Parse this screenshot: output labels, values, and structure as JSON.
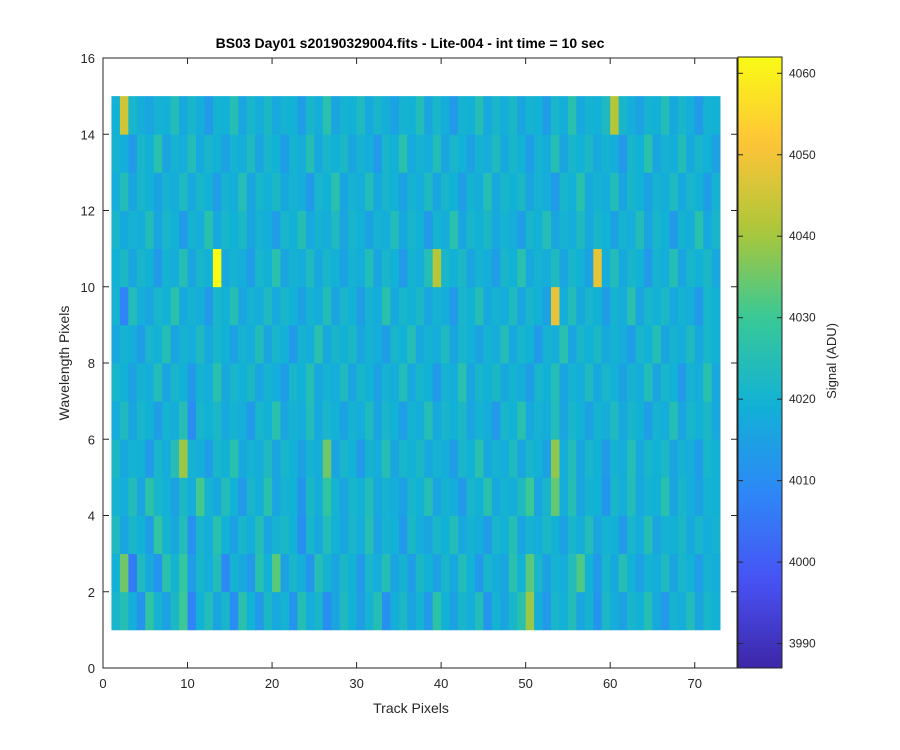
{
  "chart_data": {
    "type": "heatmap",
    "title": "BS03 Day01  s20190329004.fits - Lite-004 - int time = 10 sec",
    "xlabel": "Track Pixels",
    "ylabel": "Wavelength Pixels",
    "colorbar_label": "Signal (ADU)",
    "xlim": [
      0,
      75
    ],
    "ylim": [
      0,
      16
    ],
    "x_ticks": [
      0,
      10,
      20,
      30,
      40,
      50,
      60,
      70
    ],
    "y_ticks": [
      0,
      2,
      4,
      6,
      8,
      10,
      12,
      14,
      16
    ],
    "clim": [
      3987,
      4062
    ],
    "colorbar_ticks": [
      3990,
      4000,
      4010,
      4020,
      4030,
      4040,
      4050,
      4060
    ],
    "colormap": "parula",
    "grid": false,
    "x_extent": [
      1,
      73
    ],
    "y_extent": [
      1,
      15
    ],
    "n_cols": 72,
    "n_rows": 14,
    "rows": [
      [
        4021,
        4025,
        4018,
        4012,
        4028,
        4020,
        4015,
        4022,
        4030,
        4008,
        4019,
        4024,
        4016,
        4021,
        4010,
        4026,
        4019,
        4013,
        4022,
        4017,
        4020,
        4012,
        4025,
        4018,
        4021,
        4010,
        4016,
        4023,
        4019,
        4014,
        4020,
        4025,
        4011,
        4018,
        4022,
        4016,
        4020,
        4013,
        4027,
        4019,
        4015,
        4021,
        4018,
        4024,
        4012,
        4020,
        4016,
        4021,
        4026,
        4039,
        4018,
        4013,
        4021,
        4019,
        4024,
        4016,
        4020,
        4012,
        4022,
        4018,
        4015,
        4021,
        4019,
        4025,
        4017,
        4013,
        4020,
        4018,
        4024,
        4016,
        4021,
        4019
      ],
      [
        4019,
        4035,
        4006,
        4023,
        4017,
        4012,
        4026,
        4020,
        4029,
        4014,
        4021,
        4018,
        4024,
        4009,
        4020,
        4017,
        4013,
        4026,
        4019,
        4033,
        4015,
        4021,
        4018,
        4012,
        4025,
        4020,
        4016,
        4022,
        4019,
        4013,
        4021,
        4018,
        4025,
        4016,
        4020,
        4014,
        4022,
        4019,
        4015,
        4021,
        4017,
        4024,
        4019,
        4013,
        4021,
        4018,
        4016,
        4026,
        4019,
        4033,
        4021,
        4015,
        4020,
        4018,
        4024,
        4032,
        4019,
        4013,
        4021,
        4017,
        4025,
        4019,
        4015,
        4020,
        4018,
        4023,
        4016,
        4021,
        4019,
        4014,
        4020,
        4018
      ],
      [
        4023,
        4016,
        4021,
        4019,
        4014,
        4028,
        4020,
        4017,
        4024,
        4011,
        4021,
        4018,
        4026,
        4019,
        4015,
        4021,
        4018,
        4025,
        4016,
        4020,
        4022,
        4019,
        4010,
        4021,
        4017,
        4024,
        4019,
        4016,
        4021,
        4018,
        4025,
        4016,
        4020,
        4019,
        4013,
        4022,
        4018,
        4016,
        4021,
        4019,
        4024,
        4017,
        4020,
        4018,
        4014,
        4021,
        4019,
        4025,
        4016,
        4020,
        4018,
        4022,
        4019,
        4015,
        4021,
        4018,
        4024,
        4016,
        4020,
        4019,
        4013,
        4021,
        4018,
        4025,
        4016,
        4020,
        4019,
        4022,
        4017,
        4021,
        4018,
        4020
      ],
      [
        4020,
        4018,
        4024,
        4016,
        4027,
        4021,
        4019,
        4015,
        4022,
        4018,
        4031,
        4020,
        4017,
        4024,
        4019,
        4013,
        4021,
        4018,
        4026,
        4016,
        4020,
        4019,
        4012,
        4022,
        4018,
        4028,
        4020,
        4016,
        4021,
        4019,
        4024,
        4017,
        4020,
        4018,
        4015,
        4021,
        4019,
        4025,
        4016,
        4020,
        4018,
        4013,
        4021,
        4019,
        4026,
        4017,
        4020,
        4018,
        4023,
        4030,
        4016,
        4021,
        4034,
        4018,
        4025,
        4016,
        4020,
        4019,
        4012,
        4021,
        4018,
        4024,
        4017,
        4020,
        4019,
        4026,
        4016,
        4021,
        4018,
        4015,
        4020,
        4019
      ],
      [
        4022,
        4017,
        4020,
        4019,
        4013,
        4021,
        4018,
        4025,
        4039,
        4020,
        4018,
        4014,
        4021,
        4019,
        4026,
        4017,
        4020,
        4018,
        4023,
        4016,
        4021,
        4019,
        4015,
        4020,
        4018,
        4035,
        4016,
        4021,
        4019,
        4013,
        4020,
        4018,
        4025,
        4016,
        4021,
        4019,
        4022,
        4017,
        4020,
        4018,
        4014,
        4021,
        4019,
        4026,
        4017,
        4020,
        4018,
        4023,
        4016,
        4021,
        4019,
        4015,
        4038,
        4018,
        4024,
        4016,
        4021,
        4019,
        4013,
        4020,
        4018,
        4025,
        4017,
        4021,
        4019,
        4022,
        4016,
        4020,
        4018,
        4014,
        4021,
        4019
      ],
      [
        4018,
        4023,
        4016,
        4021,
        4019,
        4014,
        4020,
        4018,
        4025,
        4010,
        4021,
        4019,
        4022,
        4017,
        4020,
        4018,
        4013,
        4021,
        4019,
        4026,
        4016,
        4020,
        4018,
        4024,
        4017,
        4021,
        4019,
        4015,
        4020,
        4018,
        4023,
        4016,
        4021,
        4019,
        4014,
        4020,
        4018,
        4025,
        4017,
        4021,
        4019,
        4022,
        4016,
        4020,
        4018,
        4013,
        4021,
        4019,
        4026,
        4017,
        4020,
        4018,
        4024,
        4016,
        4021,
        4019,
        4015,
        4020,
        4018,
        4023,
        4017,
        4021,
        4019,
        4014,
        4020,
        4018,
        4025,
        4016,
        4021,
        4019,
        4022,
        4017
      ],
      [
        4021,
        4019,
        4015,
        4020,
        4018,
        4024,
        4016,
        4021,
        4019,
        4013,
        4020,
        4018,
        4026,
        4017,
        4021,
        4019,
        4022,
        4016,
        4020,
        4018,
        4014,
        4021,
        4019,
        4025,
        4017,
        4020,
        4018,
        4023,
        4016,
        4021,
        4019,
        4015,
        4020,
        4018,
        4024,
        4017,
        4021,
        4019,
        4013,
        4020,
        4018,
        4026,
        4016,
        4021,
        4019,
        4022,
        4017,
        4020,
        4018,
        4014,
        4021,
        4019,
        4025,
        4016,
        4020,
        4018,
        4023,
        4017,
        4021,
        4019,
        4015,
        4020,
        4018,
        4024,
        4016,
        4021,
        4019,
        4013,
        4020,
        4018,
        4026,
        4017
      ],
      [
        4017,
        4020,
        4018,
        4014,
        4021,
        4019,
        4025,
        4016,
        4020,
        4018,
        4023,
        4017,
        4021,
        4019,
        4015,
        4020,
        4018,
        4024,
        4016,
        4021,
        4019,
        4013,
        4020,
        4018,
        4026,
        4017,
        4021,
        4019,
        4022,
        4016,
        4020,
        4018,
        4014,
        4021,
        4019,
        4025,
        4017,
        4020,
        4018,
        4023,
        4016,
        4021,
        4019,
        4015,
        4020,
        4018,
        4024,
        4017,
        4021,
        4019,
        4013,
        4020,
        4018,
        4026,
        4016,
        4021,
        4019,
        4022,
        4017,
        4020,
        4018,
        4014,
        4021,
        4019,
        4025,
        4016,
        4020,
        4018,
        4023,
        4017,
        4021,
        4019
      ],
      [
        4020,
        4008,
        4024,
        4018,
        4016,
        4021,
        4019,
        4026,
        4017,
        4020,
        4018,
        4013,
        4021,
        4019,
        4025,
        4016,
        4020,
        4018,
        4023,
        4017,
        4021,
        4019,
        4015,
        4020,
        4018,
        4024,
        4016,
        4021,
        4019,
        4014,
        4020,
        4018,
        4026,
        4017,
        4021,
        4019,
        4022,
        4016,
        4020,
        4018,
        4013,
        4021,
        4019,
        4025,
        4017,
        4020,
        4018,
        4023,
        4016,
        4021,
        4019,
        4015,
        4048,
        4018,
        4024,
        4017,
        4021,
        4019,
        4014,
        4020,
        4018,
        4026,
        4016,
        4021,
        4019,
        4022,
        4017,
        4020,
        4018,
        4013,
        4021,
        4019
      ],
      [
        4019,
        4022,
        4016,
        4021,
        4019,
        4013,
        4020,
        4018,
        4025,
        4016,
        4021,
        4019,
        4062,
        4017,
        4020,
        4018,
        4014,
        4021,
        4019,
        4026,
        4016,
        4020,
        4018,
        4023,
        4017,
        4021,
        4019,
        4015,
        4020,
        4018,
        4024,
        4016,
        4021,
        4019,
        4013,
        4020,
        4018,
        4025,
        4042,
        4021,
        4019,
        4022,
        4016,
        4020,
        4018,
        4014,
        4021,
        4019,
        4026,
        4017,
        4020,
        4018,
        4023,
        4016,
        4021,
        4019,
        4015,
        4048,
        4018,
        4024,
        4017,
        4021,
        4019,
        4013,
        4020,
        4018,
        4025,
        4016,
        4021,
        4019,
        4022,
        4017
      ],
      [
        4021,
        4017,
        4020,
        4018,
        4024,
        4016,
        4021,
        4019,
        4013,
        4020,
        4018,
        4026,
        4017,
        4021,
        4019,
        4022,
        4016,
        4020,
        4018,
        4014,
        4021,
        4019,
        4025,
        4017,
        4020,
        4018,
        4023,
        4016,
        4021,
        4019,
        4015,
        4020,
        4018,
        4024,
        4017,
        4021,
        4019,
        4013,
        4020,
        4018,
        4026,
        4016,
        4021,
        4019,
        4022,
        4017,
        4020,
        4018,
        4014,
        4021,
        4019,
        4025,
        4016,
        4020,
        4018,
        4023,
        4017,
        4021,
        4019,
        4015,
        4020,
        4018,
        4024,
        4016,
        4021,
        4019,
        4013,
        4020,
        4018,
        4026,
        4017,
        4021
      ],
      [
        4018,
        4024,
        4016,
        4021,
        4019,
        4015,
        4020,
        4018,
        4023,
        4017,
        4021,
        4019,
        4014,
        4020,
        4018,
        4025,
        4016,
        4021,
        4019,
        4022,
        4017,
        4020,
        4018,
        4013,
        4021,
        4019,
        4026,
        4016,
        4020,
        4018,
        4024,
        4017,
        4021,
        4019,
        4015,
        4020,
        4018,
        4023,
        4016,
        4021,
        4019,
        4014,
        4020,
        4018,
        4025,
        4017,
        4021,
        4019,
        4022,
        4016,
        4020,
        4018,
        4013,
        4021,
        4019,
        4026,
        4017,
        4020,
        4018,
        4024,
        4016,
        4021,
        4019,
        4015,
        4020,
        4018,
        4023,
        4017,
        4021,
        4019,
        4014,
        4020
      ],
      [
        4020,
        4018,
        4013,
        4021,
        4019,
        4026,
        4016,
        4020,
        4018,
        4024,
        4017,
        4021,
        4019,
        4015,
        4020,
        4018,
        4023,
        4016,
        4021,
        4019,
        4014,
        4020,
        4018,
        4025,
        4017,
        4021,
        4019,
        4022,
        4016,
        4020,
        4018,
        4013,
        4021,
        4019,
        4026,
        4017,
        4020,
        4018,
        4024,
        4016,
        4021,
        4019,
        4015,
        4020,
        4018,
        4023,
        4017,
        4021,
        4019,
        4014,
        4020,
        4018,
        4025,
        4016,
        4021,
        4019,
        4022,
        4017,
        4020,
        4018,
        4013,
        4021,
        4019,
        4026,
        4016,
        4020,
        4018,
        4024,
        4017,
        4021,
        4019,
        4015
      ],
      [
        4019,
        4045,
        4021,
        4018,
        4016,
        4020,
        4019,
        4024,
        4017,
        4021,
        4018,
        4013,
        4020,
        4019,
        4025,
        4016,
        4021,
        4018,
        4022,
        4017,
        4020,
        4019,
        4014,
        4021,
        4018,
        4026,
        4016,
        4020,
        4019,
        4023,
        4017,
        4021,
        4018,
        4015,
        4020,
        4019,
        4024,
        4016,
        4021,
        4018,
        4013,
        4020,
        4019,
        4025,
        4017,
        4021,
        4018,
        4022,
        4016,
        4020,
        4019,
        4014,
        4021,
        4018,
        4026,
        4017,
        4020,
        4019,
        4023,
        4042,
        4021,
        4018,
        4015,
        4020,
        4019,
        4024,
        4017,
        4021,
        4018,
        4013,
        4020,
        4019
      ]
    ]
  }
}
